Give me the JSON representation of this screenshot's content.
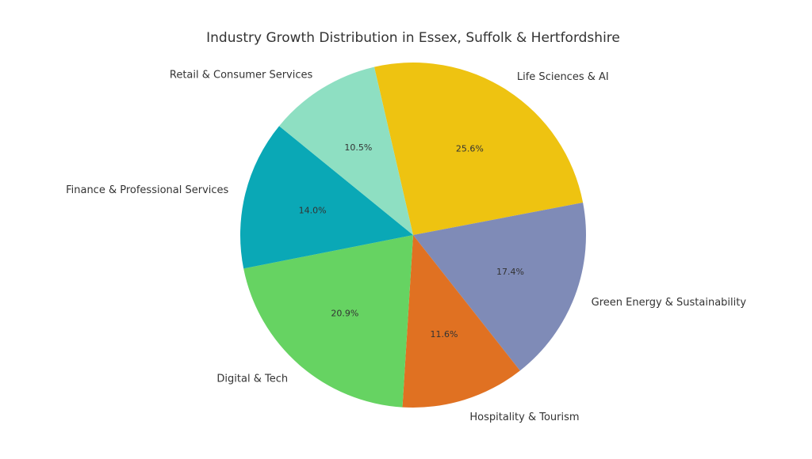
{
  "chart_data": {
    "type": "pie",
    "title": "Industry Growth Distribution in Essex, Suffolk & Hertfordshire",
    "start_angle_deg": 103,
    "direction": "clockwise",
    "slices": [
      {
        "label": "Life Sciences & AI",
        "value": 25.6,
        "pct_label": "25.6%",
        "color": "#EEC311"
      },
      {
        "label": "Green Energy & Sustainability",
        "value": 17.4,
        "pct_label": "17.4%",
        "color": "#7F8BB7"
      },
      {
        "label": "Hospitality & Tourism",
        "value": 11.6,
        "pct_label": "11.6%",
        "color": "#E07122"
      },
      {
        "label": "Digital & Tech",
        "value": 20.9,
        "pct_label": "20.9%",
        "color": "#66D362"
      },
      {
        "label": "Finance & Professional Services",
        "value": 14.0,
        "pct_label": "14.0%",
        "color": "#0AA8B6"
      },
      {
        "label": "Retail & Consumer Services",
        "value": 10.5,
        "pct_label": "10.5%",
        "color": "#8EDFC2"
      }
    ]
  }
}
